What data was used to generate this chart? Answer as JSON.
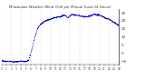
{
  "title": "Milwaukee Weather Wind Chill per Minute (Last 24 Hours)",
  "bg_color": "#ffffff",
  "line_color": "#0000cc",
  "grid_color": "#888888",
  "ylim": [
    -7,
    27
  ],
  "yticks": [
    -5,
    0,
    5,
    10,
    15,
    20,
    25
  ],
  "x_values": [
    0,
    60,
    120,
    180,
    240,
    300,
    330,
    360,
    390,
    420,
    450,
    480,
    510,
    540,
    570,
    600,
    630,
    660,
    690,
    720,
    750,
    780,
    810,
    840,
    870,
    900,
    960,
    1020,
    1080,
    1140,
    1200,
    1260,
    1320,
    1380,
    1439
  ],
  "y_values": [
    -4.5,
    -5,
    -5,
    -5.2,
    -4.8,
    -5,
    -4.5,
    0,
    6,
    12,
    16,
    18,
    19,
    20,
    20.5,
    21,
    21.5,
    22,
    22.5,
    22.5,
    23,
    23.5,
    22,
    23,
    24,
    23.5,
    23,
    22.5,
    23,
    24,
    23.5,
    22,
    21,
    19,
    17
  ],
  "num_vgrid": 13,
  "tick_fontsize": 3.0,
  "title_fontsize": 2.8,
  "linewidth": 0.5
}
